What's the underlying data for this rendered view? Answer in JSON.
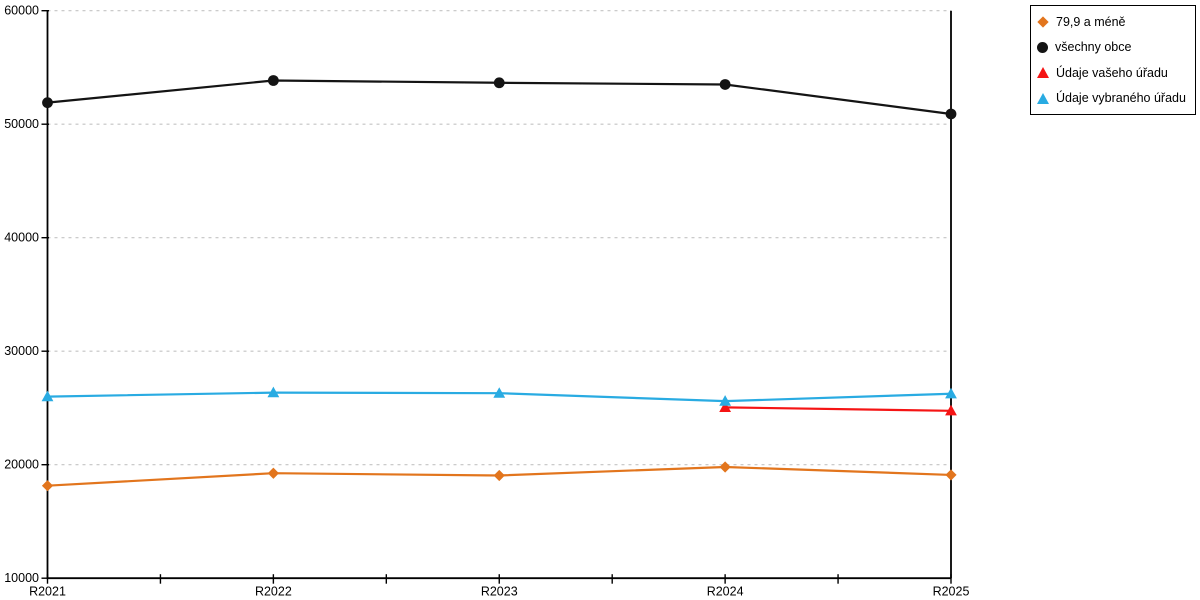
{
  "chart_data": {
    "type": "line",
    "categories": [
      "R2021",
      "R2022",
      "R2023",
      "R2024",
      "R2025"
    ],
    "series": [
      {
        "name": "79,9 a méně",
        "color": "#E2751D",
        "marker": "diamond",
        "values": [
          18150,
          19250,
          19050,
          19800,
          19100
        ]
      },
      {
        "name": "všechny obce",
        "color": "#141414",
        "marker": "circle",
        "values": [
          51900,
          53850,
          53650,
          53500,
          50900
        ]
      },
      {
        "name": "Údaje vašeho úřadu",
        "color": "#F51414",
        "marker": "triangle",
        "values": [
          null,
          null,
          null,
          25050,
          24750
        ]
      },
      {
        "name": "Údaje vybraného úřadu",
        "color": "#29ABE2",
        "marker": "triangle",
        "values": [
          26000,
          26350,
          26300,
          25600,
          26250
        ]
      }
    ],
    "ylim": [
      10000,
      60000
    ],
    "ytick_step": 10000,
    "ytick_labels": [
      "10000",
      "20000",
      "30000",
      "40000",
      "50000",
      "60000"
    ],
    "grid": "horizontal-dashed",
    "grid_color": "#C4C4C4",
    "axis_color": "#000000",
    "legend_position": "top-right",
    "xlabel": "",
    "ylabel": "",
    "title": ""
  }
}
